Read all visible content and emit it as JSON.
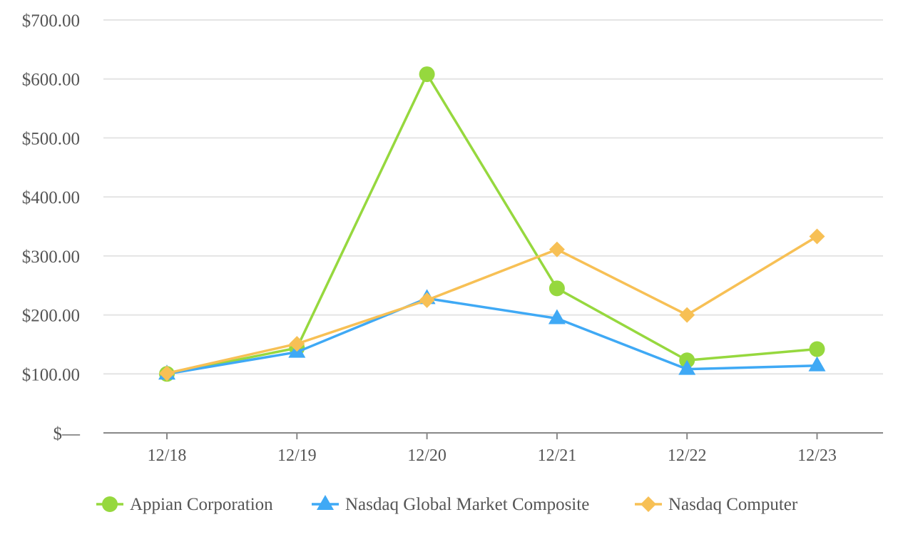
{
  "chart_data": {
    "type": "line",
    "x": [
      "12/18",
      "12/19",
      "12/20",
      "12/21",
      "12/22",
      "12/23"
    ],
    "ylim": [
      0,
      700
    ],
    "y_ticks": [
      0,
      100,
      200,
      300,
      400,
      500,
      600,
      700
    ],
    "y_tick_labels": [
      "$—",
      "$100.00",
      "$200.00",
      "$300.00",
      "$400.00",
      "$500.00",
      "$600.00",
      "$700.00"
    ],
    "grid": true,
    "legend_position": "bottom",
    "series": [
      {
        "name": "Appian Corporation",
        "color": "#96d83e",
        "marker": "circle",
        "values": [
          100,
          144,
          608,
          245,
          123,
          142
        ]
      },
      {
        "name": "Nasdaq Global Market Composite",
        "color": "#3fa9f5",
        "marker": "triangle",
        "values": [
          100,
          137,
          228,
          194,
          108,
          114
        ]
      },
      {
        "name": "Nasdaq Computer",
        "color": "#f7c055",
        "marker": "diamond",
        "values": [
          101,
          151,
          225,
          311,
          200,
          333
        ]
      }
    ]
  }
}
